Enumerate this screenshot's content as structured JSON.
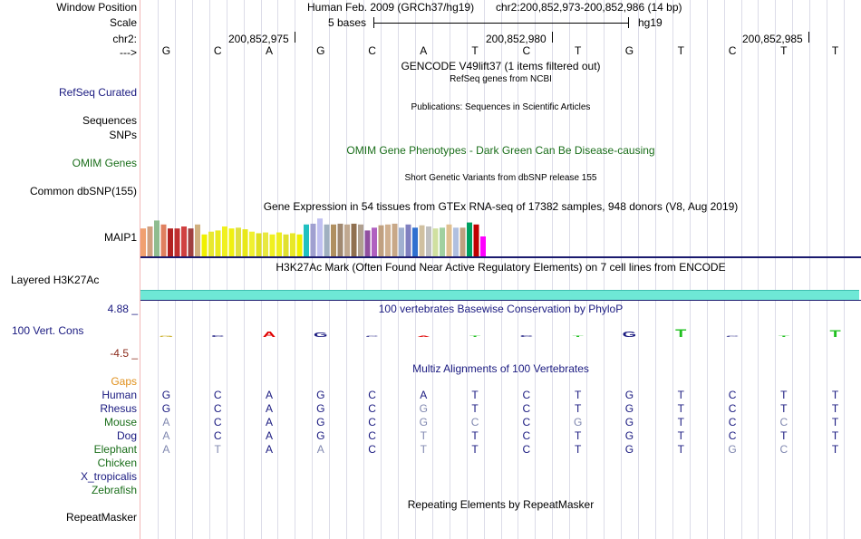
{
  "header": {
    "window_position_label": "Window Position",
    "scale_label": "Scale",
    "chr_label": "chr2:",
    "strand_label": "--->",
    "assembly": "Human Feb. 2009 (GRCh37/hg19)",
    "position": "chr2:200,852,973-200,852,986 (14 bp)",
    "scale_text": "5 bases",
    "scale_db": "hg19",
    "coord_ticks": [
      "200,852,975",
      "200,852,980",
      "200,852,985"
    ]
  },
  "bases": [
    "G",
    "C",
    "A",
    "G",
    "C",
    "A",
    "T",
    "C",
    "T",
    "G",
    "T",
    "C",
    "T",
    "T"
  ],
  "tracks": {
    "gencode_title": "GENCODE V49lift37 (1 items filtered out)",
    "refseq_title": "RefSeq genes from NCBI",
    "refseq_label": "RefSeq Curated",
    "publications_title": "Publications: Sequences in Scientific Articles",
    "sequences_label": "Sequences",
    "snps_label": "SNPs",
    "omim_title": "OMIM Gene Phenotypes - Dark Green Can Be Disease-causing",
    "omim_label": "OMIM Genes",
    "dbsnp_title": "Short Genetic Variants from dbSNP release 155",
    "dbsnp_label": "Common dbSNP(155)",
    "gtex_title": "Gene Expression in 54 tissues from GTEx RNA-seq of 17382 samples, 948 donors (V8, Aug 2019)",
    "gtex_label": "MAIP1",
    "h3k27ac_title": "H3K27Ac Mark (Often Found Near Active Regulatory Elements) on 7 cell lines from ENCODE",
    "h3k27ac_label": "Layered H3K27Ac",
    "phylop_title": "100 vertebrates Basewise Conservation by PhyloP",
    "phylop_label": "100 Vert. Cons",
    "phylop_max": "4.88 _",
    "phylop_min": "-4.5 _",
    "multiz_title": "Multiz Alignments of 100 Vertebrates",
    "gaps_label": "Gaps",
    "repeat_title": "Repeating Elements by RepeatMasker",
    "repeat_label": "RepeatMasker"
  },
  "gtex_colors": [
    "#f0a070",
    "#d0a080",
    "#8fbc8f",
    "#e08060",
    "#b22222",
    "#c03030",
    "#d04040",
    "#a04040",
    "#d0b080",
    "#f0f000",
    "#e8e830",
    "#eaea20",
    "#f0f020",
    "#f0f010",
    "#e0e040",
    "#e8e818",
    "#f0f030",
    "#e0e020",
    "#e8e840",
    "#f0f020",
    "#eeee20",
    "#e0e030",
    "#e8e828",
    "#f0f000",
    "#20c0c0",
    "#a0a0d0",
    "#c0c0f0",
    "#a0b0c0",
    "#b09060",
    "#a08870",
    "#c0a890",
    "#907050",
    "#b0a090",
    "#9050a0",
    "#b060c0",
    "#c0a080",
    "#d0b090",
    "#c8a888",
    "#a0b0d0",
    "#8080c0",
    "#3070d0",
    "#d0c0a0",
    "#c0c0c0",
    "#d0e0a0",
    "#a0d0a0",
    "#e0c090",
    "#b0c0e0",
    "#c0a080",
    "#00a060",
    "#c00000",
    "#ff00ff"
  ],
  "gtex_values": [
    0.7,
    0.75,
    0.9,
    0.8,
    0.7,
    0.7,
    0.75,
    0.7,
    0.8,
    0.55,
    0.62,
    0.65,
    0.75,
    0.7,
    0.72,
    0.68,
    0.62,
    0.58,
    0.6,
    0.55,
    0.6,
    0.55,
    0.58,
    0.55,
    0.8,
    0.82,
    0.95,
    0.8,
    0.8,
    0.82,
    0.8,
    0.82,
    0.8,
    0.65,
    0.72,
    0.78,
    0.8,
    0.82,
    0.72,
    0.8,
    0.72,
    0.78,
    0.75,
    0.7,
    0.72,
    0.8,
    0.72,
    0.72,
    0.85,
    0.8,
    0.5
  ],
  "phylop_scores": [
    0.1,
    0.15,
    0.4,
    0.35,
    0.1,
    0.05,
    0.05,
    0.15,
    0.02,
    0.4,
    0.6,
    0.04,
    0.06,
    0.55
  ],
  "multiz": {
    "species": [
      {
        "name": "Human",
        "color": "#1a1a80",
        "seq": "GCAGCATCTGTCTT",
        "diff": "00000000000000"
      },
      {
        "name": "Rhesus",
        "color": "#1a1a80",
        "seq": "GCAGCGTCTGTCTT",
        "diff": "00000100000000"
      },
      {
        "name": "Mouse",
        "color": "#1a6e1a",
        "seq": "ACAGCGCCGGTCCT",
        "diff": "10000110100010"
      },
      {
        "name": "Dog",
        "color": "#1a1a80",
        "seq": "ACAGCTTCTGTCTT",
        "diff": "10000100000000"
      },
      {
        "name": "Elephant",
        "color": "#1a6e1a",
        "seq": "ATAACTTCTGTGCT",
        "diff": "11010100000110"
      },
      {
        "name": "Chicken",
        "color": "#1a6e1a",
        "seq": "",
        "diff": ""
      },
      {
        "name": "X_tropicalis",
        "color": "#1a1a80",
        "seq": "",
        "diff": ""
      },
      {
        "name": "Zebrafish",
        "color": "#1a6e1a",
        "seq": "",
        "diff": ""
      }
    ]
  }
}
